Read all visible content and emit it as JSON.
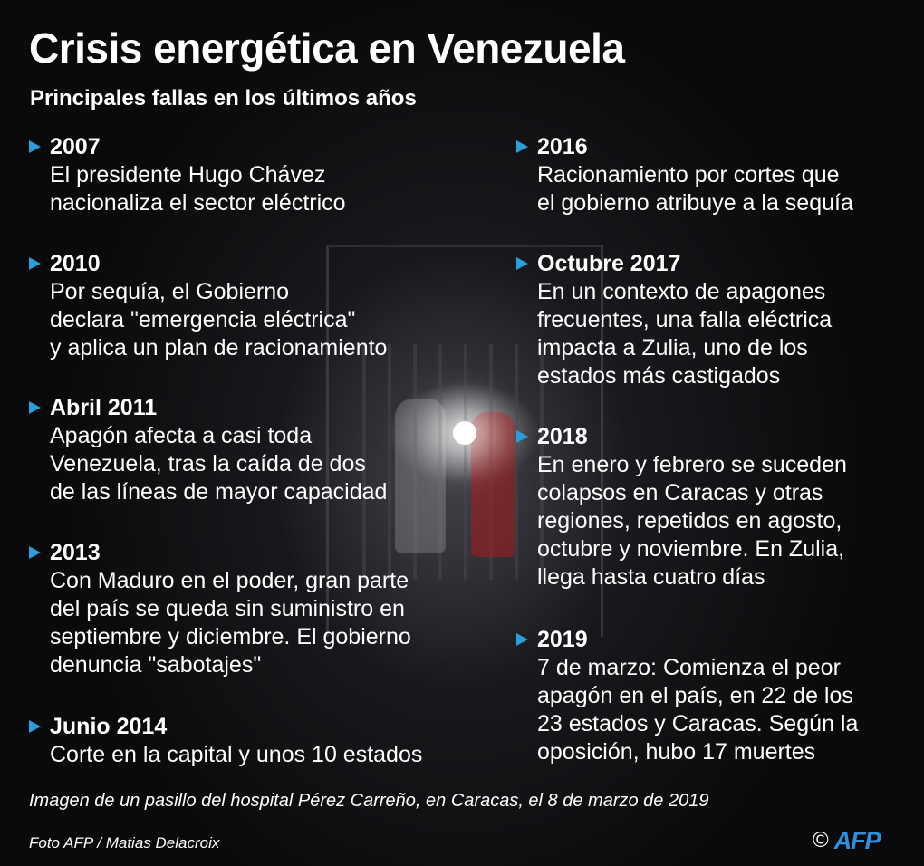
{
  "title": "Crisis energética en Venezuela",
  "subtitle": "Principales fallas en los últimos años",
  "accent_color": "#29a0dc",
  "left_events": [
    {
      "label": "2007",
      "lines": [
        "El presidente Hugo Chávez",
        "nacionaliza el sector eléctrico"
      ]
    },
    {
      "label": "2010",
      "lines": [
        "Por sequía, el Gobierno",
        "declara \"emergencia eléctrica\"",
        "y aplica un plan de racionamiento"
      ]
    },
    {
      "label": "Abril 2011",
      "lines": [
        "Apagón afecta a casi toda",
        "Venezuela, tras la caída de dos",
        "de las líneas de mayor capacidad"
      ]
    },
    {
      "label": "2013",
      "lines": [
        "Con Maduro en el poder, gran parte",
        "del país se queda sin suministro en",
        "septiembre y diciembre. El gobierno",
        "denuncia \"sabotajes\""
      ]
    },
    {
      "label": "Junio 2014",
      "lines": [
        "Corte en la capital y unos 10 estados"
      ]
    }
  ],
  "right_events": [
    {
      "label": "2016",
      "lines": [
        "Racionamiento por cortes que",
        "el gobierno atribuye a la sequía"
      ]
    },
    {
      "label": "Octubre 2017",
      "lines": [
        "En un contexto de apagones",
        "frecuentes, una falla eléctrica",
        "impacta a Zulia, uno de los",
        "estados más castigados"
      ]
    },
    {
      "label": "2018",
      "lines": [
        "En enero y febrero se suceden",
        "colapsos en Caracas y otras",
        "regiones, repetidos en agosto,",
        "octubre y noviembre. En Zulia,",
        "llega hasta cuatro días"
      ]
    },
    {
      "label": "2019",
      "lines": [
        "7 de marzo: Comienza el peor",
        "apagón en el país, en 22 de los",
        "23 estados y Caracas. Según la",
        "oposición, hubo 17 muertes"
      ]
    }
  ],
  "caption": "Imagen de un pasillo del hospital Pérez Carreño, en Caracas, el 8 de marzo de 2019",
  "credit": "Foto AFP / Matias Delacroix",
  "logo": {
    "copyright": "©",
    "brand": "AFP"
  }
}
